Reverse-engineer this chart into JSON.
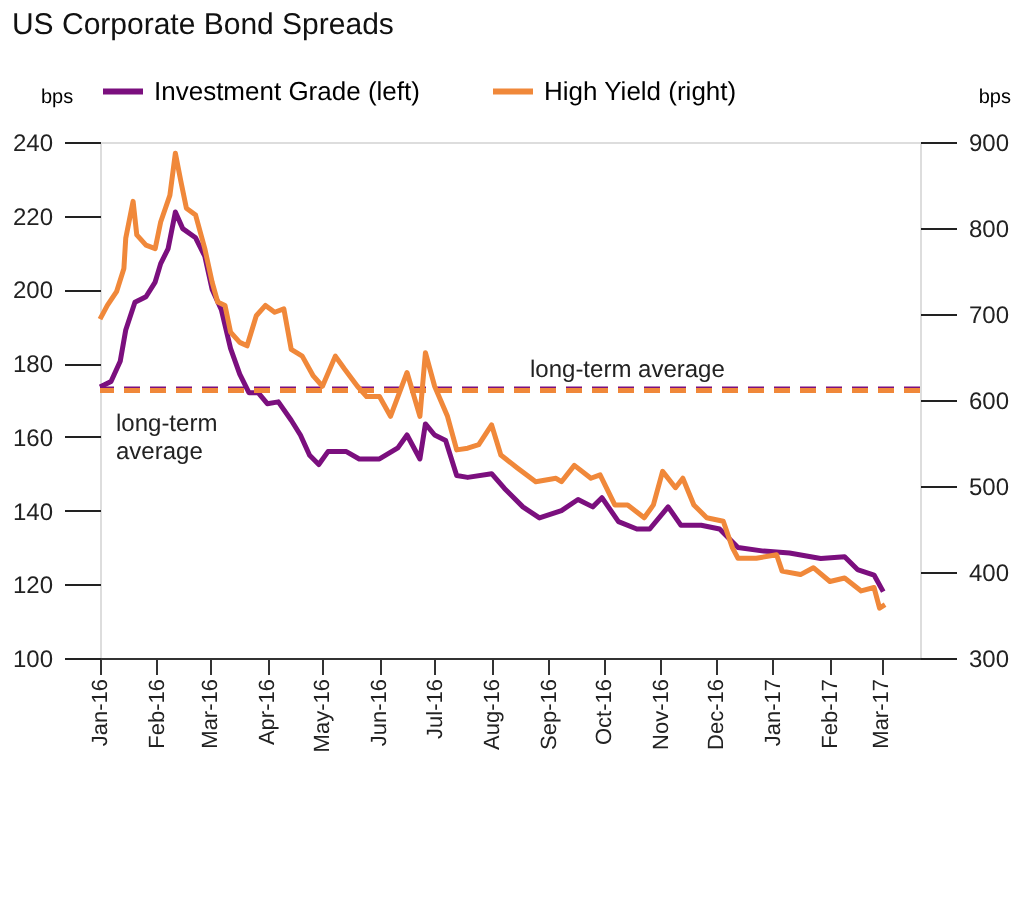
{
  "chart_data": {
    "type": "line",
    "title": "US Corporate Bond Spreads",
    "ylabel": "bps",
    "y2label": "bps",
    "xlim": [
      "2016-01-01",
      "2017-03-22"
    ],
    "xticks": [
      {
        "value": "2016-01-01",
        "label": "Jan-16"
      },
      {
        "value": "2016-02-01",
        "label": "Feb-16"
      },
      {
        "value": "2016-03-01",
        "label": "Mar-16"
      },
      {
        "value": "2016-04-01",
        "label": "Apr-16"
      },
      {
        "value": "2016-05-01",
        "label": "May-16"
      },
      {
        "value": "2016-06-01",
        "label": "Jun-16"
      },
      {
        "value": "2016-07-01",
        "label": "Jul-16"
      },
      {
        "value": "2016-08-01",
        "label": "Aug-16"
      },
      {
        "value": "2016-09-01",
        "label": "Sep-16"
      },
      {
        "value": "2016-10-01",
        "label": "Oct-16"
      },
      {
        "value": "2016-11-01",
        "label": "Nov-16"
      },
      {
        "value": "2016-12-01",
        "label": "Dec-16"
      },
      {
        "value": "2017-01-01",
        "label": "Jan-17"
      },
      {
        "value": "2017-02-01",
        "label": "Feb-17"
      },
      {
        "value": "2017-03-01",
        "label": "Mar-17"
      }
    ],
    "ylim": [
      100,
      240
    ],
    "yticks": [
      100,
      120,
      140,
      160,
      180,
      200,
      220,
      240
    ],
    "y2lim": [
      300,
      900
    ],
    "y2ticks": [
      300,
      400,
      500,
      600,
      700,
      800,
      900
    ],
    "grid": false,
    "legend": "top",
    "marker": "none",
    "line_style": "solid",
    "ref_lines": [
      {
        "axis": "y",
        "value": 173,
        "label": "long-term\naverage",
        "color": "#7b0f7e",
        "line_style": "dashed"
      },
      {
        "axis": "y2",
        "value": 611,
        "label": "long-term average",
        "color": "#f0883a",
        "line_style": "dashed"
      }
    ],
    "series": [
      {
        "name": "Investment Grade (left)",
        "color": "#7b0f7e",
        "axis": "y",
        "x": [
          "2016-01-01",
          "2016-01-07",
          "2016-01-12",
          "2016-01-15",
          "2016-01-20",
          "2016-01-26",
          "2016-01-31",
          "2016-02-03",
          "2016-02-07",
          "2016-02-11",
          "2016-02-15",
          "2016-02-22",
          "2016-02-27",
          "2016-03-02",
          "2016-03-07",
          "2016-03-12",
          "2016-03-17",
          "2016-03-22",
          "2016-03-27",
          "2016-04-01",
          "2016-04-07",
          "2016-04-14",
          "2016-04-19",
          "2016-04-24",
          "2016-04-29",
          "2016-05-04",
          "2016-05-14",
          "2016-05-21",
          "2016-06-01",
          "2016-06-11",
          "2016-06-16",
          "2016-06-23",
          "2016-06-26",
          "2016-07-01",
          "2016-07-07",
          "2016-07-13",
          "2016-07-19",
          "2016-08-01",
          "2016-08-08",
          "2016-08-18",
          "2016-08-27",
          "2016-09-08",
          "2016-09-17",
          "2016-09-25",
          "2016-09-30",
          "2016-10-09",
          "2016-10-19",
          "2016-10-26",
          "2016-11-05",
          "2016-11-12",
          "2016-11-23",
          "2016-12-03",
          "2016-12-13",
          "2016-12-27",
          "2017-01-10",
          "2017-01-27",
          "2017-02-09",
          "2017-02-16",
          "2017-02-25",
          "2017-03-02"
        ],
        "values": [
          173.5,
          175,
          180.5,
          189,
          196.5,
          198,
          202,
          207,
          211,
          221,
          216.5,
          214,
          209,
          200,
          194.5,
          184,
          177,
          172,
          172,
          169,
          169.5,
          164.5,
          160.5,
          155,
          152.5,
          156,
          156,
          154,
          154,
          157,
          160.5,
          154,
          163.5,
          160.5,
          159,
          149.5,
          149,
          150,
          146,
          141,
          138,
          140,
          143,
          141,
          143.5,
          137,
          135,
          135,
          141,
          136,
          136,
          135,
          130,
          129,
          128.5,
          127,
          127.5,
          124,
          122.5,
          118
        ]
      },
      {
        "name": "High Yield (right)",
        "color": "#f0883a",
        "axis": "y2",
        "x": [
          "2016-01-01",
          "2016-01-05",
          "2016-01-10",
          "2016-01-14",
          "2016-01-15",
          "2016-01-19",
          "2016-01-21",
          "2016-01-26",
          "2016-01-31",
          "2016-02-03",
          "2016-02-08",
          "2016-02-11",
          "2016-02-14",
          "2016-02-17",
          "2016-02-22",
          "2016-02-27",
          "2016-03-02",
          "2016-03-05",
          "2016-03-09",
          "2016-03-12",
          "2016-03-17",
          "2016-03-21",
          "2016-03-26",
          "2016-03-31",
          "2016-04-05",
          "2016-04-10",
          "2016-04-14",
          "2016-04-20",
          "2016-04-26",
          "2016-05-01",
          "2016-05-08",
          "2016-05-13",
          "2016-05-20",
          "2016-05-25",
          "2016-06-01",
          "2016-06-07",
          "2016-06-16",
          "2016-06-23",
          "2016-06-26",
          "2016-07-01",
          "2016-07-08",
          "2016-07-13",
          "2016-07-19",
          "2016-07-25",
          "2016-08-01",
          "2016-08-06",
          "2016-08-15",
          "2016-08-25",
          "2016-09-05",
          "2016-09-08",
          "2016-09-15",
          "2016-09-24",
          "2016-09-29",
          "2016-10-07",
          "2016-10-14",
          "2016-10-23",
          "2016-10-28",
          "2016-11-02",
          "2016-11-09",
          "2016-11-13",
          "2016-11-19",
          "2016-11-26",
          "2016-12-05",
          "2016-12-10",
          "2016-12-13",
          "2016-12-23",
          "2017-01-03",
          "2017-01-06",
          "2017-01-16",
          "2017-01-23",
          "2017-02-01",
          "2017-02-09",
          "2017-02-18",
          "2017-02-25",
          "2017-02-28",
          "2017-03-03"
        ],
        "values": [
          694,
          710,
          726,
          753,
          788,
          831,
          792,
          780,
          776,
          807,
          838,
          887,
          854,
          823,
          815,
          776,
          737,
          714,
          710,
          679,
          667,
          663,
          698,
          710,
          702,
          706,
          659,
          651,
          628,
          616,
          651,
          636,
          616,
          604,
          604,
          581,
          632,
          581,
          655,
          616,
          581,
          542,
          544,
          548,
          571,
          536,
          521,
          505,
          509,
          505,
          524,
          509,
          513,
          478,
          478,
          463,
          478,
          517,
          498,
          509,
          478,
          463,
          459,
          428,
          416,
          416,
          420,
          401,
          397,
          405,
          389,
          393,
          378,
          382,
          358,
          362
        ]
      }
    ]
  }
}
